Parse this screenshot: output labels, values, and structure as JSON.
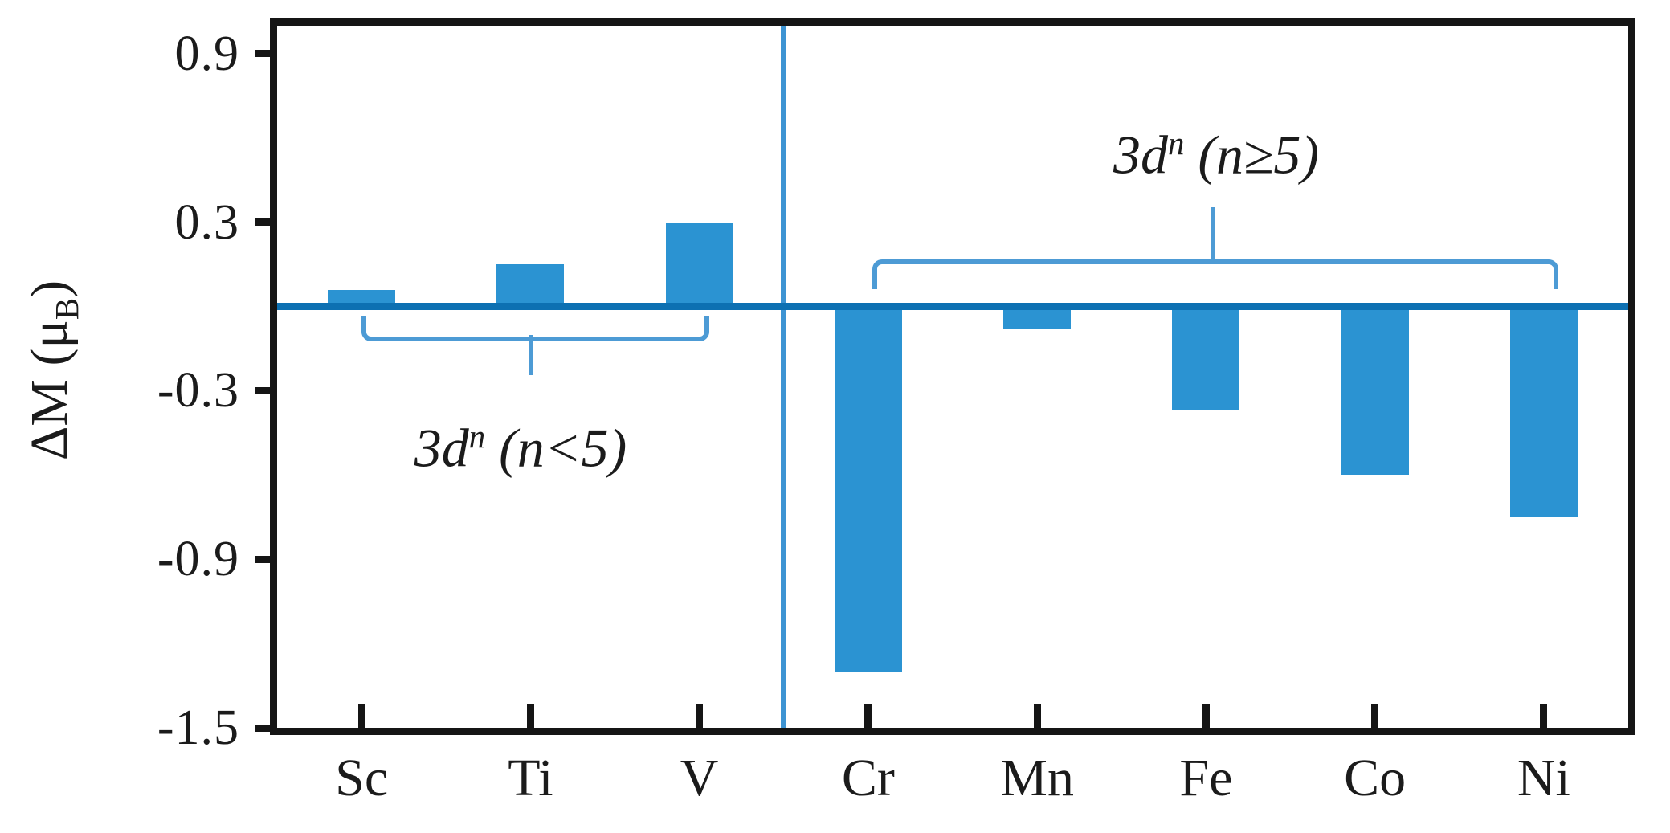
{
  "figure": {
    "y_axis_title": {
      "pre": "ΔM (μ",
      "sub": "B",
      "post": ")"
    },
    "annotations": {
      "left_group": {
        "pre": "3d",
        "sup": "n",
        "post": " (n<5)"
      },
      "right_group": {
        "pre": "3d",
        "sup": "n",
        "post": " (n≥5)"
      }
    }
  },
  "colors": {
    "bar": "#2B93D2",
    "zero_line": "#0D70B2",
    "separator_line": "#3D94D3",
    "bracket": "#4D9BD5",
    "axis": "#151515"
  },
  "chart_data": {
    "type": "bar",
    "categories": [
      "Sc",
      "Ti",
      "V",
      "Cr",
      "Mn",
      "Fe",
      "Co",
      "Ni"
    ],
    "values": [
      0.06,
      0.15,
      0.3,
      -1.3,
      -0.08,
      -0.37,
      -0.6,
      -0.75
    ],
    "title": "",
    "xlabel": "",
    "ylabel": "ΔM (μB)",
    "ylim": [
      -1.5,
      1.0
    ],
    "yticks": [
      0.9,
      0.3,
      -0.3,
      -0.9,
      -1.5
    ],
    "ytick_labels": [
      "0.9",
      "0.3",
      "-0.3",
      "-0.9",
      "-1.5"
    ],
    "grid": false,
    "legend": "none",
    "baseline_at": 0,
    "separator_between": [
      "V",
      "Cr"
    ],
    "groups": [
      {
        "label": "3dⁿ (n<5)",
        "members": [
          "Sc",
          "Ti",
          "V"
        ],
        "bracket": "below-axis"
      },
      {
        "label": "3dⁿ (n≥5)",
        "members": [
          "Cr",
          "Mn",
          "Fe",
          "Co",
          "Ni"
        ],
        "bracket": "above-axis"
      }
    ]
  }
}
